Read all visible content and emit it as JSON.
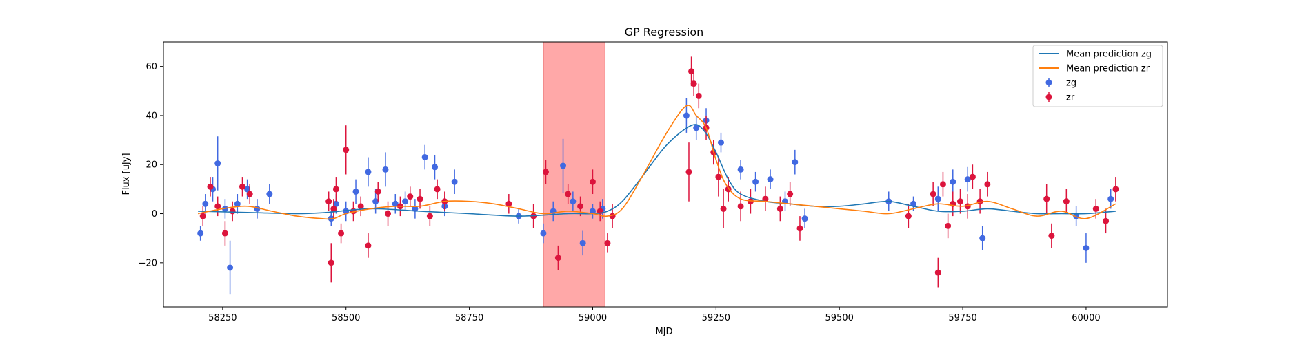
{
  "chart_data": {
    "type": "scatter",
    "title": "GP Regression",
    "xlabel": "MJD",
    "ylabel": "Flux [uJy]",
    "xlim": [
      58130,
      60165
    ],
    "ylim": [
      -38,
      70
    ],
    "xticks": [
      58250,
      58500,
      58750,
      59000,
      59250,
      59500,
      59750,
      60000
    ],
    "yticks": [
      -20,
      0,
      20,
      40,
      60
    ],
    "grid": false,
    "legend_position": "top-right",
    "shaded_region": {
      "x_start": 58900,
      "x_end": 59025,
      "color": "#ff9999"
    },
    "series": [
      {
        "name": "Mean prediction zg",
        "kind": "line",
        "color": "#1f77b4",
        "x": [
          58200,
          58300,
          58400,
          58460,
          58550,
          58650,
          58750,
          58850,
          58950,
          59000,
          59030,
          59060,
          59100,
          59150,
          59200,
          59225,
          59250,
          59275,
          59300,
          59350,
          59400,
          59450,
          59500,
          59550,
          59600,
          59650,
          59700,
          59750,
          59800,
          59850,
          59900,
          59950,
          60000,
          60060
        ],
        "y": [
          1,
          0.5,
          0,
          0.5,
          2,
          1,
          0,
          -1,
          0,
          0,
          1,
          5,
          15,
          28,
          36,
          34,
          25,
          14,
          8,
          5,
          4,
          3,
          3,
          4,
          5,
          3,
          1,
          1,
          2,
          1,
          0,
          0,
          0,
          1
        ]
      },
      {
        "name": "Mean prediction zr",
        "kind": "line",
        "color": "#ff7f0e",
        "x": [
          58200,
          58250,
          58300,
          58350,
          58400,
          58450,
          58475,
          58500,
          58550,
          58600,
          58650,
          58700,
          58750,
          58800,
          58850,
          58900,
          58950,
          59000,
          59030,
          59060,
          59100,
          59150,
          59190,
          59210,
          59230,
          59250,
          59270,
          59300,
          59350,
          59400,
          59450,
          59500,
          59550,
          59600,
          59650,
          59700,
          59750,
          59800,
          59850,
          59900,
          59950,
          60000,
          60060
        ],
        "y": [
          0,
          2,
          3,
          1,
          -1,
          -2,
          -2,
          0,
          2,
          3,
          3,
          5,
          5,
          4,
          2,
          0,
          1,
          0,
          -1,
          2,
          15,
          33,
          44,
          40,
          35,
          22,
          12,
          6,
          5,
          4,
          3,
          2,
          1,
          0,
          2,
          4,
          3,
          5,
          2,
          -1,
          1,
          -2,
          4
        ]
      },
      {
        "name": "zg",
        "kind": "errorbar",
        "color": "#4169e1",
        "x": [
          58205,
          58215,
          58230,
          58240,
          58255,
          58265,
          58280,
          58300,
          58320,
          58345,
          58470,
          58480,
          58500,
          58520,
          58545,
          58560,
          58580,
          58600,
          58620,
          58640,
          58660,
          58680,
          58700,
          58720,
          58850,
          58900,
          58920,
          58940,
          58960,
          58980,
          59000,
          59020,
          59190,
          59210,
          59230,
          59260,
          59300,
          59330,
          59360,
          59390,
          59410,
          59430,
          59600,
          59650,
          59700,
          59730,
          59760,
          59790,
          59980,
          60000,
          60050
        ],
        "y": [
          -8,
          4,
          10,
          20.5,
          2,
          -22,
          4,
          10,
          2,
          8,
          -2,
          4,
          1,
          9,
          17,
          5,
          18,
          4,
          5,
          2,
          23,
          19,
          3,
          13,
          -1,
          -8,
          1,
          19.5,
          5,
          -12,
          1,
          2,
          40,
          35,
          38,
          29,
          18,
          13,
          14,
          5,
          21,
          -2,
          5,
          4,
          6,
          13,
          14,
          -10,
          -1,
          -14,
          6
        ],
        "yerr": [
          3,
          4,
          5,
          11,
          4,
          11,
          4,
          4,
          4,
          4,
          3,
          4,
          4,
          5,
          6,
          5,
          7,
          4,
          4,
          4,
          5,
          5,
          4,
          5,
          3,
          4,
          4,
          11,
          4,
          5,
          3,
          4,
          7,
          5,
          5,
          4,
          4,
          4,
          4,
          4,
          5,
          4,
          4,
          3,
          5,
          5,
          5,
          5,
          4,
          6,
          4
        ]
      },
      {
        "name": "zr",
        "kind": "errorbar",
        "color": "#dc143c",
        "x": [
          58210,
          58225,
          58240,
          58255,
          58270,
          58290,
          58305,
          58465,
          58470,
          58475,
          58480,
          58490,
          58500,
          58515,
          58530,
          58545,
          58565,
          58585,
          58610,
          58630,
          58650,
          58670,
          58685,
          58700,
          58830,
          58880,
          58905,
          58930,
          58950,
          58975,
          59000,
          59015,
          59030,
          59040,
          59195,
          59200,
          59205,
          59215,
          59230,
          59245,
          59255,
          59265,
          59275,
          59300,
          59320,
          59350,
          59380,
          59400,
          59420,
          59640,
          59690,
          59700,
          59710,
          59720,
          59730,
          59745,
          59760,
          59770,
          59785,
          59800,
          59920,
          59930,
          59960,
          60020,
          60040,
          60060
        ],
        "y": [
          -1,
          11,
          3,
          -8,
          1,
          11,
          8,
          5,
          -20,
          2,
          10,
          -8,
          26,
          1,
          3,
          -13,
          9,
          0,
          3,
          7,
          6,
          -1,
          10,
          5,
          4,
          -1,
          17,
          -18,
          8,
          3,
          13,
          1,
          -12,
          -1,
          17,
          58,
          53,
          48,
          35,
          25,
          15,
          2,
          10,
          3,
          5,
          6,
          2,
          8,
          -6,
          -1,
          8,
          -24,
          12,
          -5,
          4,
          5,
          3,
          15,
          5,
          12,
          6,
          -9,
          5,
          2,
          -3,
          10
        ],
        "yerr": [
          4,
          4,
          4,
          5,
          4,
          4,
          4,
          4,
          8,
          4,
          5,
          4,
          10,
          4,
          4,
          5,
          4,
          5,
          4,
          4,
          4,
          4,
          4,
          4,
          4,
          5,
          5,
          5,
          4,
          4,
          5,
          4,
          4,
          5,
          12,
          6,
          5,
          5,
          5,
          5,
          8,
          8,
          5,
          6,
          5,
          5,
          5,
          5,
          5,
          5,
          5,
          6,
          5,
          5,
          5,
          5,
          5,
          5,
          5,
          5,
          6,
          5,
          5,
          4,
          5,
          5
        ]
      }
    ]
  }
}
